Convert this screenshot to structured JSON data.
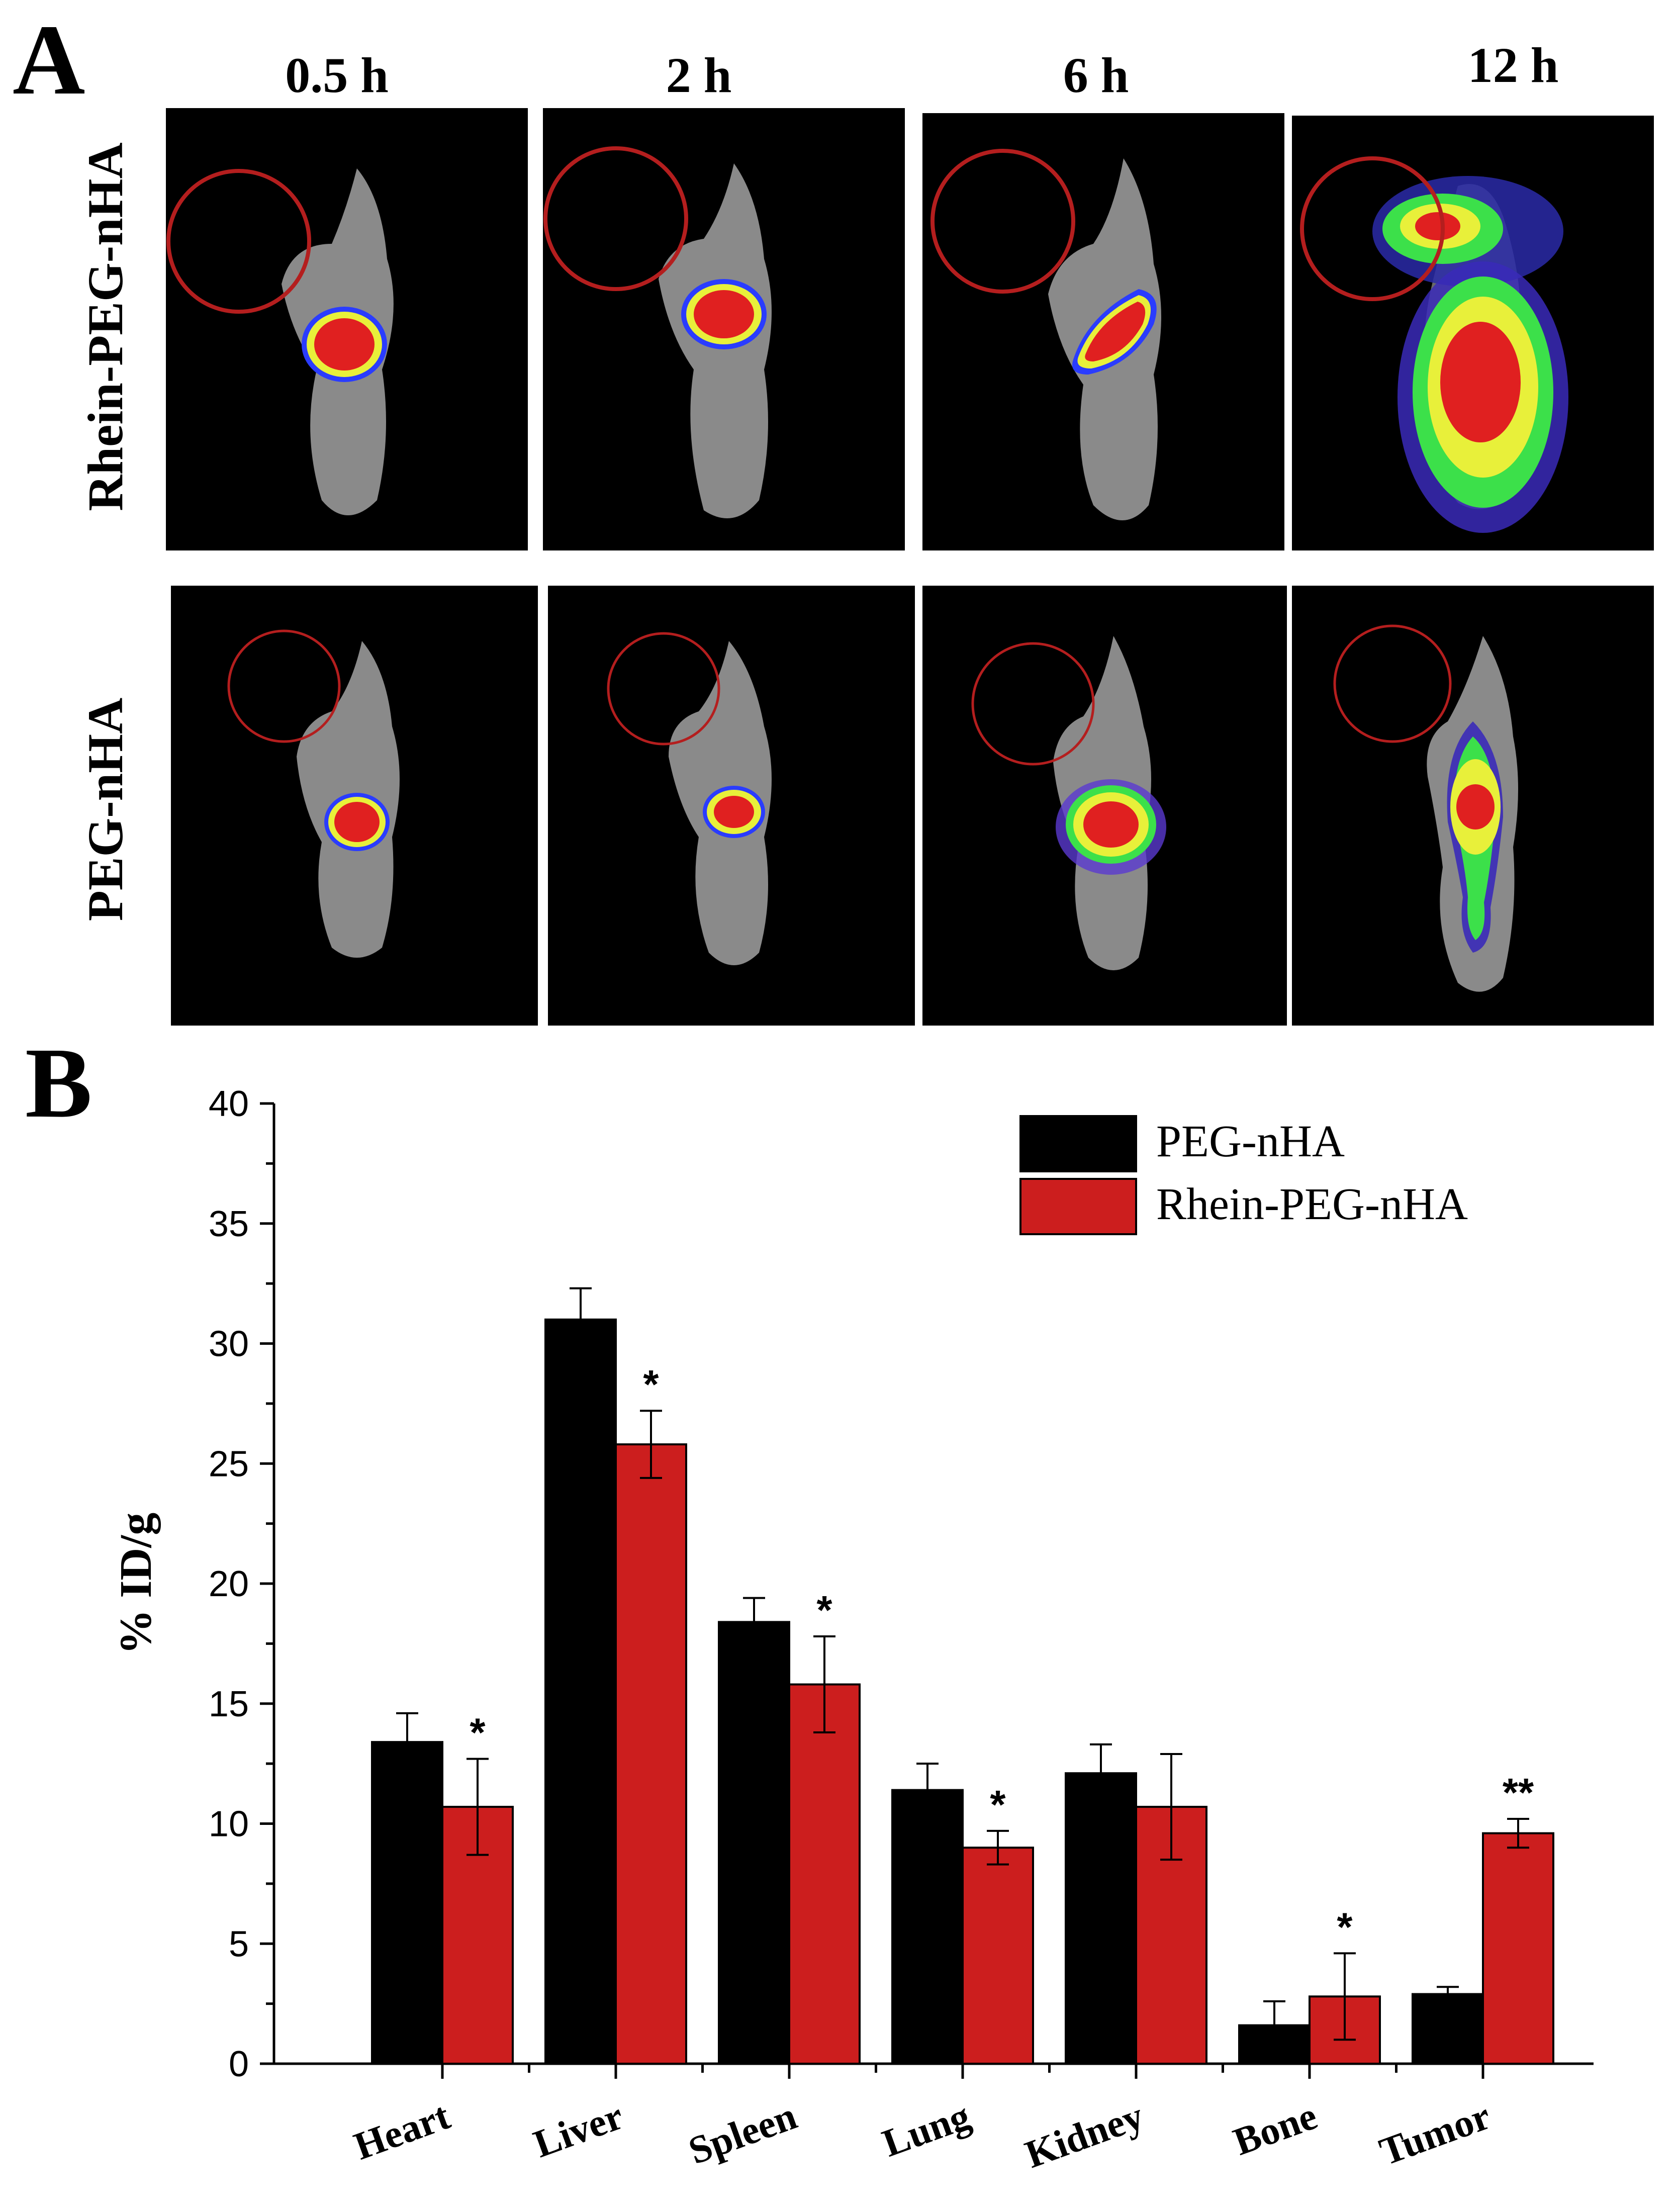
{
  "panel_a": {
    "label": "A",
    "time_points": [
      "0.5 h",
      "2 h",
      "6 h",
      "12 h"
    ],
    "rows": [
      "Rhein-PEG-nHA",
      "PEG-nHA"
    ]
  },
  "panel_b": {
    "label": "B"
  },
  "colors": {
    "peg_nha": "#000000",
    "rhein_peg_nha": "#cc1e1e",
    "tumor_circle": "#b41e1e"
  },
  "chart_data": {
    "type": "bar",
    "title": "",
    "xlabel": "",
    "ylabel": "% ID/g",
    "ylim": [
      0,
      40
    ],
    "yticks": [
      0,
      5,
      10,
      15,
      20,
      25,
      30,
      35,
      40
    ],
    "grid": false,
    "legend_position": "top-right",
    "categories": [
      "Heart",
      "Liver",
      "Spleen",
      "Lung",
      "Kidney",
      "Bone",
      "Tumor"
    ],
    "series": [
      {
        "name": "PEG-nHA",
        "color": "#000000",
        "values": [
          13.4,
          31.0,
          18.4,
          11.4,
          12.1,
          1.6,
          2.9
        ],
        "errors": [
          1.2,
          1.3,
          1.0,
          1.1,
          1.2,
          1.0,
          0.3
        ]
      },
      {
        "name": "Rhein-PEG-nHA",
        "color": "#cc1e1e",
        "values": [
          10.7,
          25.8,
          15.8,
          9.0,
          10.7,
          2.8,
          9.6
        ],
        "errors": [
          2.0,
          1.4,
          2.0,
          0.7,
          2.2,
          1.8,
          0.6
        ],
        "annotations": [
          "*",
          "*",
          "*",
          "*",
          "",
          "*",
          "**"
        ]
      }
    ]
  }
}
